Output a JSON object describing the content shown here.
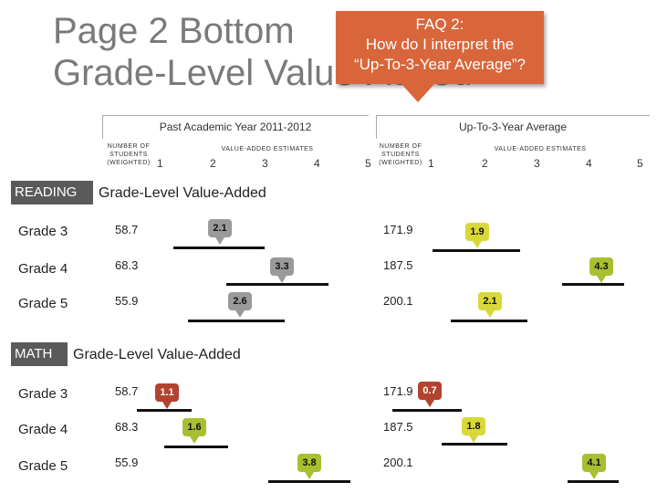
{
  "title_line1": "Page 2 Bottom",
  "title_line2": "Grade-Level Value-Added",
  "callout": {
    "line1": "FAQ 2:",
    "line2": "How do I interpret the",
    "line3": "“Up-To-3-Year Average”?"
  },
  "left_header": "Past Academic Year 2011-2012",
  "right_header": "Up-To-3-Year Average",
  "students_label": [
    "NUMBER OF",
    "STUDENTS",
    "(WEIGHTED)"
  ],
  "estimates_label": "VALUE-ADDED ESTIMATES",
  "scale": [
    "1",
    "2",
    "3",
    "4",
    "5"
  ],
  "sections": [
    {
      "label": "READING",
      "title": "Grade-Level Value-Added",
      "rows": [
        {
          "grade": "Grade 3",
          "left_n": "58.7",
          "left_est": "2.1",
          "right_n": "171.9",
          "right_est": "1.9"
        },
        {
          "grade": "Grade 4",
          "left_n": "68.3",
          "left_est": "3.3",
          "right_n": "187.5",
          "right_est": "4.3"
        },
        {
          "grade": "Grade 5",
          "left_n": "55.9",
          "left_est": "2.6",
          "right_n": "200.1",
          "right_est": "2.1"
        }
      ]
    },
    {
      "label": "MATH",
      "title": "Grade-Level Value-Added",
      "rows": [
        {
          "grade": "Grade 3",
          "left_n": "58.7",
          "left_est": "1.1",
          "right_n": "171.9",
          "right_est": "0.7"
        },
        {
          "grade": "Grade 4",
          "left_n": "68.3",
          "left_est": "1.6",
          "right_n": "187.5",
          "right_est": "1.8"
        },
        {
          "grade": "Grade 5",
          "left_n": "55.9",
          "left_est": "3.8",
          "right_n": "200.1",
          "right_est": "4.1"
        }
      ]
    }
  ],
  "colors": {
    "callout": "#d9663a",
    "section_label_bg": "#5a5a5a",
    "marker_gray": "#9a9a9a",
    "marker_green": "#a8c030",
    "marker_yellow": "#d8d838",
    "marker_red": "#b24330"
  }
}
